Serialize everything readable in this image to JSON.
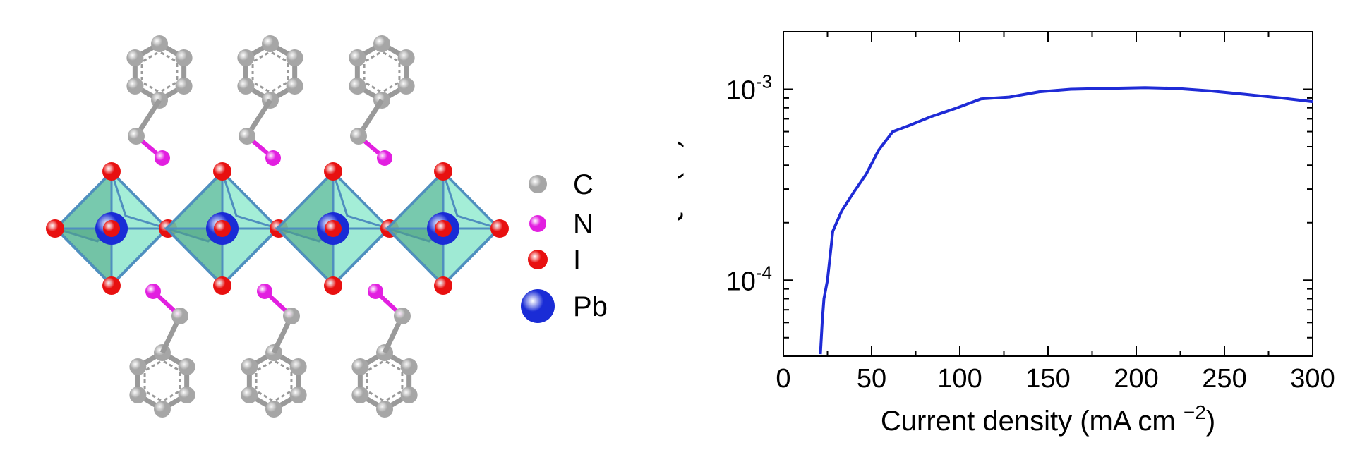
{
  "legend": [
    {
      "label": "C",
      "color": "#a6a6a6"
    },
    {
      "label": "N",
      "color": "#e21fe0"
    },
    {
      "label": "I",
      "color": "#e81010"
    },
    {
      "label": "Pb",
      "color": "#1a2cd6"
    }
  ],
  "colors": {
    "octahedron_fill": "#7fe3c6",
    "octahedron_edge": "#4f8fbf",
    "bond": "#9a9a9a",
    "curve": "#1f2bd6"
  },
  "chart_data": {
    "type": "line",
    "xlabel": "Current density (mA cm",
    "xlabel_sup": "−2",
    "xlabel_end": ")",
    "ylabel": "EQE (%)",
    "xlim": [
      0,
      300
    ],
    "ylim": [
      4e-05,
      0.002
    ],
    "yscale": "log",
    "xticks": [
      "0",
      "50",
      "100",
      "150",
      "200",
      "250",
      "300"
    ],
    "xtick_values": [
      0,
      50,
      100,
      150,
      200,
      250,
      300
    ],
    "yticks": [
      {
        "base": "10",
        "exp": "-3",
        "value": 0.001
      },
      {
        "base": "10",
        "exp": "-4",
        "value": 0.0001
      }
    ],
    "series": [
      {
        "x": [
          21,
          22,
          23,
          25,
          28,
          33,
          40,
          47,
          54,
          62,
          72,
          84,
          97,
          112,
          128,
          145,
          163,
          185,
          205,
          222,
          242,
          262,
          282,
          300
        ],
        "y": [
          4.1e-05,
          6e-05,
          8e-05,
          0.0001,
          0.00018,
          0.00023,
          0.00029,
          0.00036,
          0.00048,
          0.0006,
          0.00065,
          0.00072,
          0.00079,
          0.00089,
          0.00091,
          0.00097,
          0.001,
          0.00101,
          0.00102,
          0.00101,
          0.00098,
          0.00094,
          0.0009,
          0.00086
        ]
      }
    ]
  }
}
